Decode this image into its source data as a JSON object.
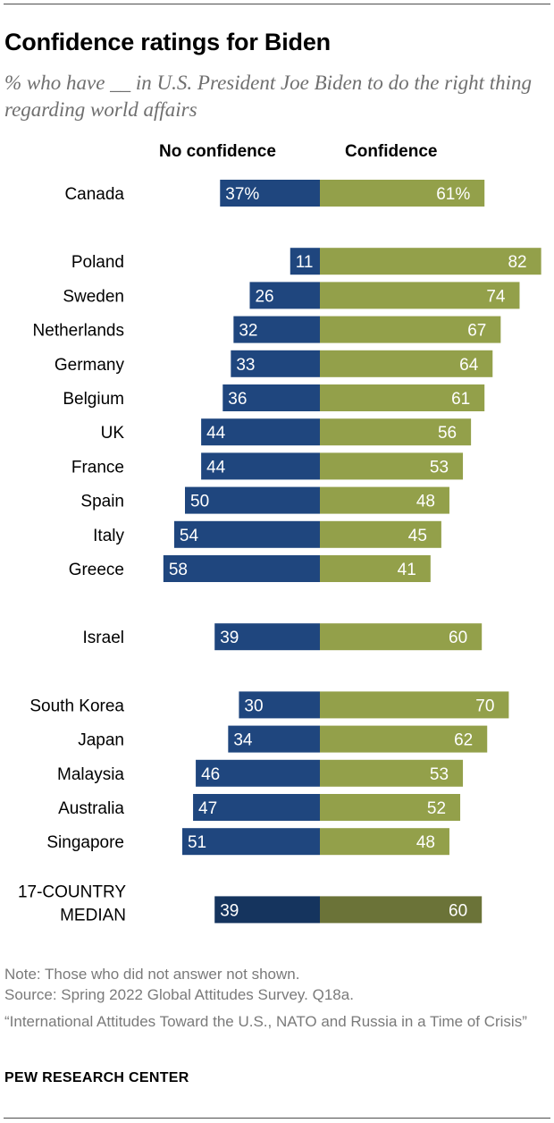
{
  "title": "Confidence ratings for Biden",
  "subtitle": "% who have __ in U.S. President Joe Biden to do the right thing regarding world affairs",
  "colors": {
    "no_confidence": "#1f467e",
    "confidence": "#93a04a",
    "median_no_confidence": "#15345e",
    "median_confidence": "#6b7338"
  },
  "chart_data": {
    "type": "bar",
    "orientation": "diverging-horizontal",
    "title": "Confidence ratings for Biden",
    "subtitle": "% who have __ in U.S. President Joe Biden to do the right thing regarding world affairs",
    "legend": [
      "No confidence",
      "Confidence"
    ],
    "categories": [
      "Canada",
      "Poland",
      "Sweden",
      "Netherlands",
      "Germany",
      "Belgium",
      "UK",
      "France",
      "Spain",
      "Italy",
      "Greece",
      "Israel",
      "South Korea",
      "Japan",
      "Malaysia",
      "Australia",
      "Singapore",
      "17-COUNTRY MEDIAN"
    ],
    "series": [
      {
        "name": "No confidence",
        "values": [
          37,
          11,
          26,
          32,
          33,
          36,
          44,
          44,
          50,
          54,
          58,
          39,
          30,
          34,
          46,
          47,
          51,
          39
        ]
      },
      {
        "name": "Confidence",
        "values": [
          61,
          82,
          74,
          67,
          64,
          61,
          56,
          53,
          48,
          45,
          41,
          60,
          70,
          62,
          53,
          52,
          48,
          60
        ]
      }
    ],
    "value_labels": {
      "no_confidence": [
        "37%",
        "11",
        "26",
        "32",
        "33",
        "36",
        "44",
        "44",
        "50",
        "54",
        "58",
        "39",
        "30",
        "34",
        "46",
        "47",
        "51",
        "39"
      ],
      "confidence": [
        "61%",
        "82",
        "74",
        "67",
        "64",
        "61",
        "56",
        "53",
        "48",
        "45",
        "41",
        "60",
        "70",
        "62",
        "53",
        "52",
        "48",
        "60"
      ]
    },
    "groups": [
      {
        "categories": [
          "Canada"
        ]
      },
      {
        "categories": [
          "Poland",
          "Sweden",
          "Netherlands",
          "Germany",
          "Belgium",
          "UK",
          "France",
          "Spain",
          "Italy",
          "Greece"
        ]
      },
      {
        "categories": [
          "Israel"
        ]
      },
      {
        "categories": [
          "South Korea",
          "Japan",
          "Malaysia",
          "Australia",
          "Singapore"
        ]
      },
      {
        "categories": [
          "17-COUNTRY MEDIAN"
        ]
      }
    ],
    "median_label_lines": [
      "17-COUNTRY",
      "MEDIAN"
    ]
  },
  "notes": {
    "note": "Note: Those who did not answer not shown.",
    "source": "Source: Spring 2022 Global Attitudes Survey. Q18a.",
    "report": "“International Attitudes Toward the U.S., NATO and Russia in a Time of Crisis”"
  },
  "footer": "PEW RESEARCH CENTER"
}
